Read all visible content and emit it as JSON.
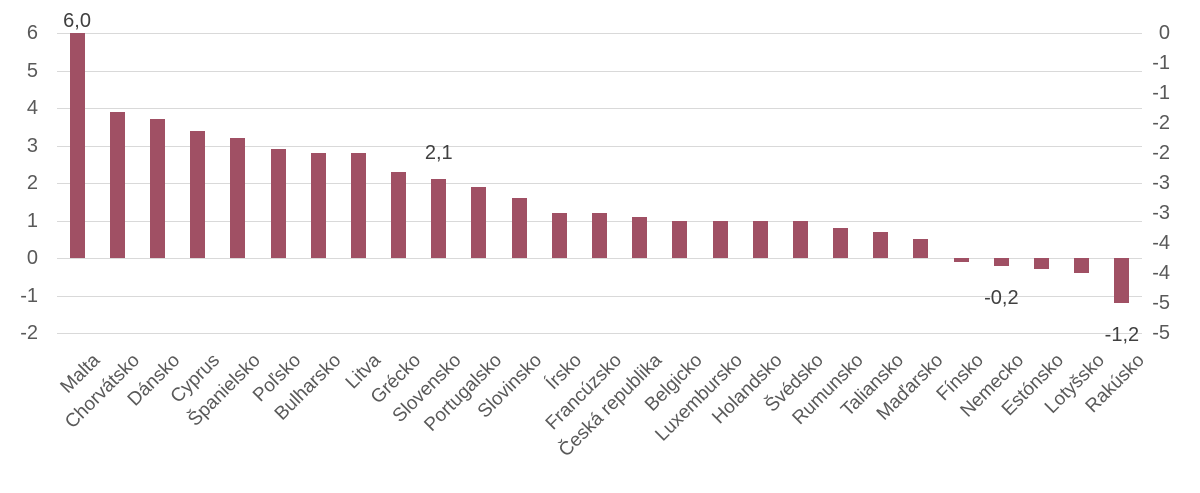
{
  "chart_data": {
    "type": "bar",
    "categories": [
      "Malta",
      "Chorvátsko",
      "Dánsko",
      "Cyprus",
      "Španielsko",
      "Poľsko",
      "Bulharsko",
      "Litva",
      "Grécko",
      "Slovensko",
      "Portugalsko",
      "Slovinsko",
      "Írsko",
      "Francúzsko",
      "Česká republika",
      "Belgicko",
      "Luxembursko",
      "Holandsko",
      "Švédsko",
      "Rumunsko",
      "Taliansko",
      "Maďarsko",
      "Fínsko",
      "Nemecko",
      "Estónsko",
      "Lotyšsko",
      "Rakúsko"
    ],
    "values": [
      6.0,
      3.9,
      3.7,
      3.4,
      3.2,
      2.9,
      2.8,
      2.8,
      2.3,
      2.1,
      1.9,
      1.6,
      1.2,
      1.2,
      1.1,
      1.0,
      1.0,
      1.0,
      1.0,
      0.8,
      0.7,
      0.5,
      -0.1,
      -0.2,
      -0.3,
      -0.4,
      -1.2
    ],
    "data_labels": [
      {
        "index": 0,
        "text": "6,0"
      },
      {
        "index": 9,
        "text": "2,1"
      },
      {
        "index": 23,
        "text": "-0,2"
      },
      {
        "index": 26,
        "text": "-1,2"
      }
    ],
    "left_axis": {
      "ticks": [
        "6",
        "5",
        "4",
        "3",
        "2",
        "1",
        "0",
        "-1",
        "-2"
      ],
      "min": -2,
      "max": 6
    },
    "right_axis": {
      "ticks": [
        "0",
        "-1",
        "-1",
        "-2",
        "-2",
        "-3",
        "-3",
        "-4",
        "-4",
        "-5",
        "-5"
      ],
      "min": -5,
      "max": 0
    },
    "title": "",
    "xlabel": "",
    "ylabel": "",
    "grid": true,
    "legend": false,
    "colors": {
      "bar": "#a05064",
      "gridline": "#d9d9d9",
      "axis_text": "#595959",
      "data_label_text": "#404040"
    }
  }
}
